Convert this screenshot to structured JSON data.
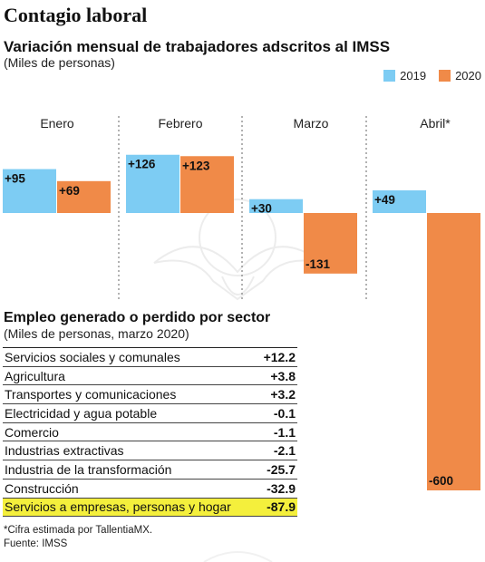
{
  "header": {
    "title": "Contagio laboral",
    "subtitle": "Variación mensual de trabajadores adscritos al IMSS",
    "unit": "(Miles de personas)"
  },
  "colors": {
    "y2019": "#7dccf3",
    "y2020": "#f08a48",
    "highlight": "#f4ef3c"
  },
  "chart_data": [
    {
      "type": "bar",
      "title": "Variación mensual de trabajadores adscritos al IMSS",
      "unit": "(Miles de personas)",
      "categories": [
        "Enero",
        "Febrero",
        "Marzo",
        "Abril*"
      ],
      "series": [
        {
          "name": "2019",
          "values": [
            95,
            126,
            30,
            49
          ],
          "labels": [
            "+95",
            "+126",
            "+30",
            "+49"
          ]
        },
        {
          "name": "2020",
          "values": [
            69,
            123,
            -131,
            -600
          ],
          "labels": [
            "+69",
            "+123",
            "-131",
            "-600"
          ]
        }
      ],
      "legend_position": "top-right",
      "grid": false
    },
    {
      "type": "table",
      "title": "Empleo generado o perdido por sector",
      "unit": "(Miles de personas, marzo 2020)",
      "rows": [
        {
          "sector": "Servicios sociales y comunales",
          "value": "+12.2"
        },
        {
          "sector": "Agricultura",
          "value": "+3.8"
        },
        {
          "sector": "Transportes y comunicaciones",
          "value": "+3.2"
        },
        {
          "sector": "Electricidad y agua potable",
          "value": "-0.1"
        },
        {
          "sector": "Comercio",
          "value": "-1.1"
        },
        {
          "sector": "Industrias extractivas",
          "value": "-2.1"
        },
        {
          "sector": "Industria de la transformación",
          "value": "-25.7"
        },
        {
          "sector": "Construcción",
          "value": "-32.9"
        },
        {
          "sector": "Servicios a empresas, personas y hogar",
          "value": "-87.9",
          "highlighted": true
        }
      ]
    }
  ],
  "footnotes": {
    "line1": "*Cifra estimada por TallentiaMX.",
    "line2": "Fuente: IMSS"
  }
}
